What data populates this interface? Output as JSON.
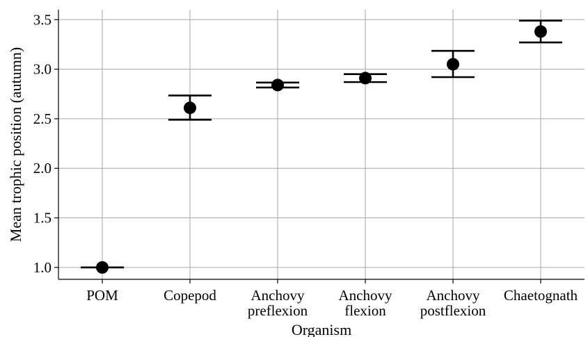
{
  "chart_data": {
    "type": "scatter",
    "xlabel": "Organism",
    "ylabel": "Mean trophic position (autumn)",
    "categories": [
      [
        "POM"
      ],
      [
        "Copepod"
      ],
      [
        "Anchovy",
        "preflexion"
      ],
      [
        "Anchovy",
        "flexion"
      ],
      [
        "Anchovy",
        "postflexion"
      ],
      [
        "Chaetognath"
      ]
    ],
    "mean": [
      1.0,
      2.61,
      2.84,
      2.91,
      3.05,
      3.38
    ],
    "lower": [
      1.0,
      2.49,
      2.815,
      2.87,
      2.92,
      3.27
    ],
    "upper": [
      1.0,
      2.735,
      2.865,
      2.95,
      3.185,
      3.49
    ],
    "ylim": [
      0.88,
      3.6
    ],
    "yticks": [
      "1.0",
      "1.5",
      "2.0",
      "2.5",
      "3.0",
      "3.5"
    ],
    "grid": true,
    "colors": {
      "point": "#000000",
      "grid": "#a6a6a6"
    }
  }
}
